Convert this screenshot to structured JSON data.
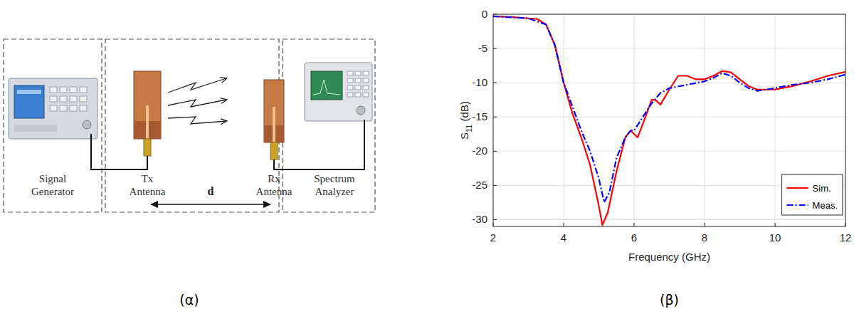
{
  "diagram": {
    "caption": "(α)",
    "blocks": [
      {
        "label_lines": [
          "Signal",
          "Generator"
        ]
      },
      {
        "label_lines": [
          "Tx",
          "Antenna"
        ]
      },
      {
        "label_lines": [
          "Rx",
          "Antenna"
        ]
      },
      {
        "label_lines": [
          "Spectrum",
          "Analyzer"
        ]
      }
    ],
    "distance_label": "d"
  },
  "chart_data": {
    "type": "line",
    "caption": "(β)",
    "xlabel": "Frequency (GHz)",
    "ylabel": "S11 (dB)",
    "xlim": [
      2,
      12
    ],
    "ylim": [
      -31,
      0
    ],
    "xticks": [
      2,
      4,
      6,
      8,
      10,
      12
    ],
    "yticks": [
      -30,
      -25,
      -20,
      -15,
      -10,
      -5,
      0
    ],
    "grid": true,
    "legend": "lower right",
    "series": [
      {
        "name": "Sim.",
        "color": "#ff0000",
        "line_style": "solid",
        "x": [
          2,
          2.5,
          3,
          3.25,
          3.5,
          3.75,
          4,
          4.25,
          4.5,
          4.75,
          5,
          5.1,
          5.25,
          5.5,
          5.75,
          5.9,
          6,
          6.1,
          6.25,
          6.5,
          6.6,
          6.75,
          7,
          7.25,
          7.5,
          7.75,
          8,
          8.25,
          8.5,
          8.75,
          9,
          9.25,
          9.5,
          10,
          10.5,
          11,
          11.5,
          12
        ],
        "values": [
          -0.3,
          -0.4,
          -0.6,
          -0.7,
          -1.5,
          -4.5,
          -10,
          -14.5,
          -18,
          -22,
          -28,
          -30.8,
          -29,
          -23,
          -18,
          -17,
          -17.5,
          -18,
          -16,
          -12.5,
          -12.5,
          -13.2,
          -11,
          -9,
          -9,
          -9.5,
          -9.5,
          -9,
          -8.3,
          -8.5,
          -9.5,
          -10.5,
          -11,
          -11,
          -10.5,
          -9.8,
          -9,
          -8.4
        ]
      },
      {
        "name": "Meas.",
        "color": "#0000ff",
        "line_style": "dashdot",
        "x": [
          2,
          3,
          3.5,
          3.75,
          4,
          4.25,
          4.5,
          4.75,
          5,
          5.15,
          5.3,
          5.5,
          5.75,
          5.9,
          6,
          6.25,
          6.5,
          6.75,
          7,
          7.5,
          8,
          8.25,
          8.5,
          8.75,
          9,
          9.25,
          9.5,
          10,
          10.5,
          11,
          11.5,
          12
        ],
        "values": [
          -0.3,
          -0.6,
          -1.5,
          -4.5,
          -10,
          -13.5,
          -17,
          -20,
          -24,
          -27.5,
          -26,
          -21,
          -18,
          -17,
          -17,
          -15,
          -13,
          -11.5,
          -10.8,
          -10.3,
          -9.8,
          -9.3,
          -8.6,
          -9,
          -10,
          -10.8,
          -11.2,
          -10.8,
          -10.3,
          -10,
          -9.5,
          -8.8
        ]
      }
    ]
  }
}
